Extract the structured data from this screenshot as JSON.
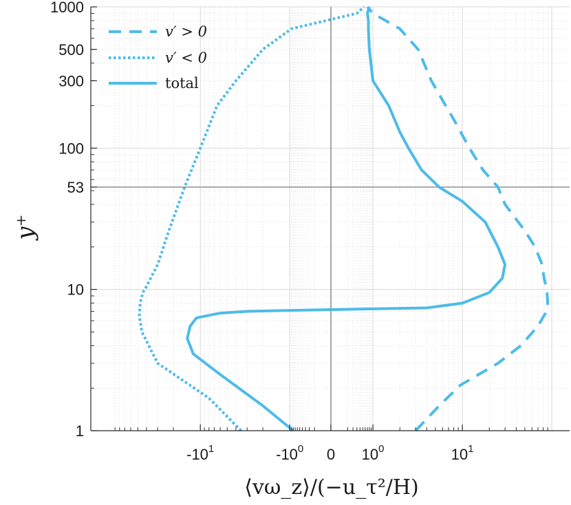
{
  "chart_data": {
    "type": "line",
    "title": "",
    "xlabel": "⟨vω_z⟩/(−u_τ²/H)",
    "ylabel": "y⁺",
    "x_scale": "symlog",
    "y_scale": "log",
    "ylim": [
      1,
      1000
    ],
    "xlim": [
      -70,
      130
    ],
    "grid": true,
    "legend_position": "top-left",
    "color": "#4dbbe8",
    "reference_lines": {
      "x": 0,
      "y": 53
    },
    "y_ticks": [
      {
        "value": 1,
        "label": "1"
      },
      {
        "value": 10,
        "label": "10"
      },
      {
        "value": 53,
        "label": "53"
      },
      {
        "value": 100,
        "label": "100"
      },
      {
        "value": 300,
        "label": "300"
      },
      {
        "value": 500,
        "label": "500"
      },
      {
        "value": 1000,
        "label": "1000"
      }
    ],
    "x_ticks": [
      {
        "value": -10,
        "base": "-10",
        "exp": "1"
      },
      {
        "value": -1,
        "base": "-10",
        "exp": "0"
      },
      {
        "value": 0,
        "base": "0",
        "exp": ""
      },
      {
        "value": 1,
        "base": "10",
        "exp": "0"
      },
      {
        "value": 10,
        "base": "10",
        "exp": "1"
      }
    ],
    "series": [
      {
        "name": "v′ > 0",
        "style": "dashed",
        "points": [
          [
            3.0,
            1
          ],
          [
            5.5,
            1.5
          ],
          [
            9.5,
            2.1
          ],
          [
            25,
            3
          ],
          [
            45,
            4
          ],
          [
            70,
            5.5
          ],
          [
            85,
            6.8
          ],
          [
            90,
            8
          ],
          [
            88,
            10
          ],
          [
            82,
            12
          ],
          [
            78,
            15
          ],
          [
            65,
            20
          ],
          [
            50,
            26
          ],
          [
            30,
            40
          ],
          [
            25,
            53
          ],
          [
            17,
            70
          ],
          [
            12,
            100
          ],
          [
            8,
            160
          ],
          [
            6.5,
            200
          ],
          [
            4.5,
            300
          ],
          [
            3.2,
            500
          ],
          [
            2.0,
            700
          ],
          [
            1.0,
            900
          ],
          [
            0.7,
            1000
          ]
        ]
      },
      {
        "name": "v′ < 0",
        "style": "dotted",
        "points": [
          [
            -3.5,
            1
          ],
          [
            -8,
            1.7
          ],
          [
            -30,
            3
          ],
          [
            -45,
            5
          ],
          [
            -48,
            6.5
          ],
          [
            -47,
            8
          ],
          [
            -44,
            9.5
          ],
          [
            -40,
            10.5
          ],
          [
            -30,
            15
          ],
          [
            -23,
            25
          ],
          [
            -15,
            53
          ],
          [
            -10,
            100
          ],
          [
            -6.5,
            200
          ],
          [
            -4,
            300
          ],
          [
            -2,
            500
          ],
          [
            -0.9,
            700
          ],
          [
            0.3,
            900
          ],
          [
            0.55,
            1000
          ]
        ]
      },
      {
        "name": "total",
        "style": "solid",
        "points": [
          [
            -0.8,
            1
          ],
          [
            -2,
            1.5
          ],
          [
            -6,
            2.5
          ],
          [
            -12,
            3.5
          ],
          [
            -14,
            4.5
          ],
          [
            -13,
            5.5
          ],
          [
            -11,
            6.3
          ],
          [
            -6,
            6.8
          ],
          [
            -3,
            7.0
          ],
          [
            0,
            7.2
          ],
          [
            4,
            7.4
          ],
          [
            10,
            8
          ],
          [
            20,
            9.5
          ],
          [
            28,
            12
          ],
          [
            30,
            15
          ],
          [
            25,
            20
          ],
          [
            18,
            30
          ],
          [
            10,
            42
          ],
          [
            5.5,
            53
          ],
          [
            3.5,
            70
          ],
          [
            2.5,
            100
          ],
          [
            2.0,
            130
          ],
          [
            1.5,
            200
          ],
          [
            1.0,
            300
          ],
          [
            0.8,
            500
          ],
          [
            0.75,
            700
          ],
          [
            0.75,
            800
          ],
          [
            0.7,
            900
          ],
          [
            0.8,
            1000
          ]
        ]
      }
    ]
  }
}
